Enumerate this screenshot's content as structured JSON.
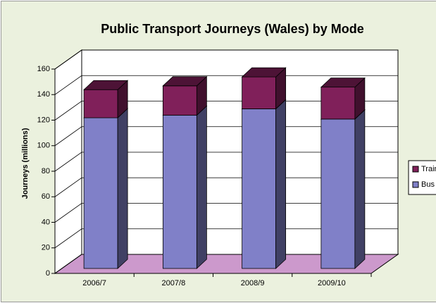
{
  "chart_data": {
    "type": "bar3d_stacked",
    "title": "Public Transport Journeys (Wales) by Mode",
    "y_label": "Journeys (millions)",
    "categories": [
      "2006/7",
      "2007/8",
      "2008/9",
      "2009/10"
    ],
    "series": [
      {
        "name": "Bus",
        "color": "#8080c8",
        "values": [
          118,
          120,
          125,
          117
        ]
      },
      {
        "name": "Train",
        "color": "#80205a",
        "values": [
          22,
          23,
          25,
          25
        ]
      }
    ],
    "ylim": [
      0,
      160
    ],
    "yticks": [
      0,
      20,
      40,
      60,
      80,
      100,
      120,
      140,
      160
    ],
    "grid": true,
    "legend": "right"
  }
}
